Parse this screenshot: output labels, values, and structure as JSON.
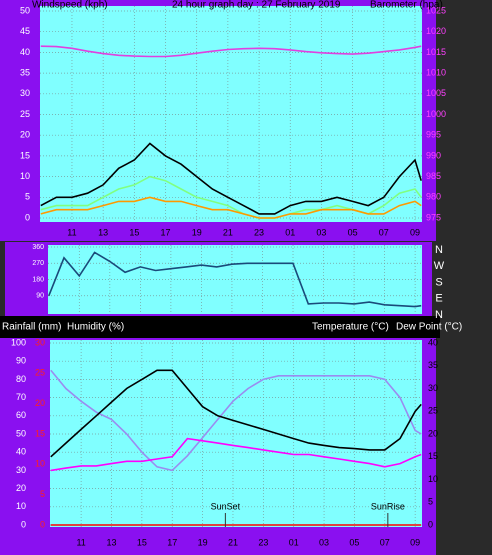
{
  "chart_data": [
    {
      "type": "line",
      "title": "24 hour graph day : 27 February 2019",
      "y_label": "Windspeed (kph)",
      "y2_label": "Barometer (hpa)",
      "x": [
        9,
        10,
        11,
        12,
        13,
        14,
        15,
        16,
        17,
        18,
        19,
        20,
        21,
        22,
        23,
        24,
        25,
        26,
        27,
        28,
        29,
        30,
        31,
        32,
        33,
        33.4
      ],
      "xlim": [
        8.95,
        33.45
      ],
      "xticks": [
        11,
        13,
        15,
        17,
        19,
        21,
        23,
        {
          "value": 25,
          "label": "01"
        },
        {
          "value": 27,
          "label": "03"
        },
        {
          "value": 29,
          "label": "05"
        },
        {
          "value": 31,
          "label": "07"
        },
        {
          "value": 33,
          "label": "09"
        }
      ],
      "ylim": [
        0,
        50
      ],
      "yticks": [
        0,
        5,
        10,
        15,
        20,
        25,
        30,
        35,
        40,
        45,
        50
      ],
      "y2lim": [
        975,
        1025
      ],
      "y2ticks": [
        975,
        980,
        985,
        990,
        995,
        1000,
        1005,
        1010,
        1015,
        1020,
        1025
      ],
      "grid": true,
      "series": [
        {
          "color": "#000000",
          "values": [
            3,
            5,
            5,
            6,
            8,
            12,
            14,
            18,
            15,
            13,
            10,
            7,
            5,
            3,
            1,
            1,
            3,
            4,
            4,
            5,
            4,
            3,
            5,
            10,
            14,
            9
          ]
        },
        {
          "color": "#80ff80",
          "values": [
            2,
            3,
            3,
            3,
            5,
            7,
            8,
            10,
            9,
            7,
            5,
            4,
            3,
            1,
            0,
            0,
            1,
            2,
            2,
            3,
            2,
            1,
            3,
            6,
            7,
            5
          ]
        },
        {
          "color": "#ff9900",
          "values": [
            1,
            2,
            2,
            2,
            3,
            4,
            4,
            5,
            4,
            4,
            3,
            2,
            2,
            1,
            0,
            0,
            1,
            1,
            2,
            2,
            2,
            1,
            1,
            3,
            4,
            3
          ]
        },
        {
          "color": "#e040e0",
          "axis": "y2",
          "values": [
            1016.5,
            1016.4,
            1016,
            1015.3,
            1014.7,
            1014.3,
            1014.1,
            1014,
            1014,
            1014.3,
            1014.8,
            1015.3,
            1015.7,
            1015.9,
            1016,
            1015.9,
            1015.6,
            1015.2,
            1014.9,
            1014.7,
            1014.6,
            1014.8,
            1015.2,
            1015.6,
            1016.2,
            1016.5
          ]
        }
      ]
    },
    {
      "type": "line",
      "x": [
        9,
        10,
        11,
        12,
        13,
        14,
        15,
        16,
        17,
        18,
        19,
        20,
        21,
        22,
        23,
        24,
        25,
        26,
        27,
        28,
        29,
        30,
        31,
        32,
        33,
        33.4
      ],
      "xlim": [
        8.95,
        33.45
      ],
      "xticks": [
        11,
        13,
        15,
        17,
        19,
        21,
        23,
        {
          "value": 25,
          "label": "01"
        },
        {
          "value": 27,
          "label": "03"
        },
        {
          "value": 29,
          "label": "05"
        },
        {
          "value": 31,
          "label": "07"
        },
        {
          "value": 33,
          "label": "09"
        }
      ],
      "ylim": [
        0,
        360
      ],
      "yticks": [
        90,
        180,
        270,
        360
      ],
      "y2lim": [
        0,
        360
      ],
      "y2ticks": [
        {
          "value": 360,
          "label": "N"
        },
        {
          "value": 270,
          "label": "W"
        },
        {
          "value": 180,
          "label": "S"
        },
        {
          "value": 90,
          "label": "E"
        },
        {
          "value": 0,
          "label": "N"
        }
      ],
      "grid": true,
      "series": [
        {
          "color": "#1a4a7a",
          "values": [
            90,
            300,
            200,
            330,
            280,
            220,
            250,
            230,
            240,
            250,
            260,
            250,
            265,
            270,
            270,
            270,
            270,
            45,
            50,
            50,
            45,
            55,
            40,
            35,
            30,
            35
          ]
        }
      ]
    },
    {
      "type": "line",
      "y3_label": "Rainfall (mm)",
      "y_label": "Humidity (%)",
      "y2_label": [
        "Temperature (°C)",
        "Dew Point (°C)"
      ],
      "x": [
        9,
        10,
        11,
        12,
        13,
        14,
        15,
        16,
        17,
        18,
        19,
        20,
        21,
        22,
        23,
        24,
        25,
        26,
        27,
        28,
        29,
        30,
        31,
        32,
        33,
        33.4
      ],
      "xlim": [
        8.95,
        33.45
      ],
      "xticks": [
        11,
        13,
        15,
        17,
        19,
        21,
        23,
        {
          "value": 25,
          "label": "01"
        },
        {
          "value": 27,
          "label": "03"
        },
        {
          "value": 29,
          "label": "05"
        },
        {
          "value": 31,
          "label": "07"
        },
        {
          "value": 33,
          "label": "09"
        }
      ],
      "ylim": [
        0,
        100
      ],
      "yticks": [
        0,
        10,
        20,
        30,
        40,
        50,
        60,
        70,
        80,
        90,
        100
      ],
      "y2lim": [
        0,
        40
      ],
      "y2ticks": [
        0,
        5,
        10,
        15,
        20,
        25,
        30,
        35,
        40
      ],
      "y3lim": [
        0,
        30
      ],
      "y3ticks": [
        0,
        5,
        10,
        15,
        20,
        25,
        30
      ],
      "grid": true,
      "annotations": [
        {
          "text": "SunSet",
          "x": 20.5
        },
        {
          "text": "SunRise",
          "x": 31.2
        }
      ],
      "series": [
        {
          "color": "#9a8cf0",
          "values": [
            85,
            75,
            68,
            62,
            58,
            50,
            40,
            32,
            30,
            38,
            48,
            58,
            68,
            75,
            80,
            82,
            82,
            82,
            82,
            82,
            82,
            82,
            80,
            70,
            52,
            50
          ]
        },
        {
          "color": "#000000",
          "axis": "y2",
          "values": [
            15,
            18,
            21,
            24,
            27,
            30,
            32,
            34,
            34,
            30,
            26,
            24,
            23,
            22,
            21,
            20,
            19,
            18,
            17.5,
            17,
            16.8,
            16.5,
            16.5,
            19,
            25,
            26.5
          ]
        },
        {
          "color": "#ff00ff",
          "axis": "y2",
          "values": [
            12,
            12.5,
            13,
            13,
            13.5,
            14,
            14,
            14.5,
            15,
            19,
            18.5,
            18,
            17.5,
            17,
            16.5,
            16,
            15.5,
            15.5,
            15,
            14.5,
            14,
            13.5,
            12.8,
            13.5,
            15,
            15.5
          ]
        },
        {
          "color": "#ff0000",
          "axis": "y3",
          "values": [
            0,
            0,
            0,
            0,
            0,
            0,
            0,
            0,
            0,
            0,
            0,
            0,
            0,
            0,
            0,
            0,
            0,
            0,
            0,
            0,
            0,
            0,
            0,
            0,
            0,
            0
          ]
        }
      ]
    }
  ]
}
